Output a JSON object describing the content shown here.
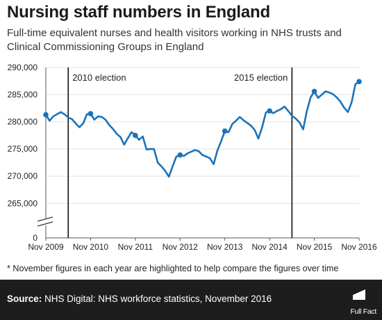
{
  "header": {
    "title": "Nursing staff numbers in England",
    "subtitle": "Full-time equivalent nurses and health visitors working in NHS trusts and Clinical Commissioning Groups in England"
  },
  "footnote": "* November figures in each year are highlighted to help compare the figures over time",
  "footer": {
    "source_label": "Source:",
    "source_text": "NHS Digital: NHS workforce statistics, November 2016",
    "brand": "Full Fact"
  },
  "colors": {
    "line": "#1a73bb",
    "background": "#ffffff",
    "footer": "#1d1d1d",
    "grid": "#e2e2e2"
  },
  "chart_data": {
    "type": "line",
    "title": "Nursing staff numbers in England",
    "xlabel": "",
    "ylabel": "",
    "x_ticks": [
      "Nov 2009",
      "Nov 2010",
      "Nov 2011",
      "Nov 2012",
      "Nov 2013",
      "Nov 2014",
      "Nov 2015",
      "Nov 2016"
    ],
    "y_ticks": [
      0,
      265000,
      270000,
      275000,
      280000,
      285000,
      290000
    ],
    "y_tick_labels": [
      "0",
      "265,000",
      "270,000",
      "275,000",
      "280,000",
      "285,000",
      "290,000"
    ],
    "ylim": [
      263500,
      290000
    ],
    "y_axis_break": true,
    "grid": "horizontal",
    "highlight_note": "November points highlighted",
    "annotations": [
      {
        "label": "2010 election",
        "x": 6
      },
      {
        "label": "2015 election",
        "x": 66
      }
    ],
    "series": [
      {
        "values": [
          281300,
          280200,
          281000,
          281400,
          281800,
          281400,
          280800,
          280500,
          279700,
          279000,
          279700,
          281400,
          281500,
          280400,
          281000,
          280900,
          280400,
          279400,
          278700,
          277800,
          277200,
          275800,
          277000,
          278100,
          277500,
          276700,
          277300,
          274900,
          275000,
          275000,
          272500,
          271800,
          271000,
          269900,
          271800,
          273600,
          273900,
          273700,
          274200,
          274500,
          274800,
          274600,
          273900,
          273600,
          273300,
          272200,
          274700,
          276400,
          278300,
          278100,
          279600,
          280200,
          280900,
          280300,
          279800,
          279300,
          278500,
          276900,
          279000,
          281700,
          282000,
          281600,
          282000,
          282300,
          282800,
          282000,
          281100,
          280600,
          279900,
          278600,
          282000,
          284500,
          285600,
          284400,
          285000,
          285600,
          285400,
          285100,
          284500,
          283700,
          282600,
          281800,
          283600,
          286900,
          287400
        ],
        "highlight_indices": [
          0,
          12,
          24,
          36,
          48,
          60,
          72,
          84
        ]
      }
    ]
  }
}
